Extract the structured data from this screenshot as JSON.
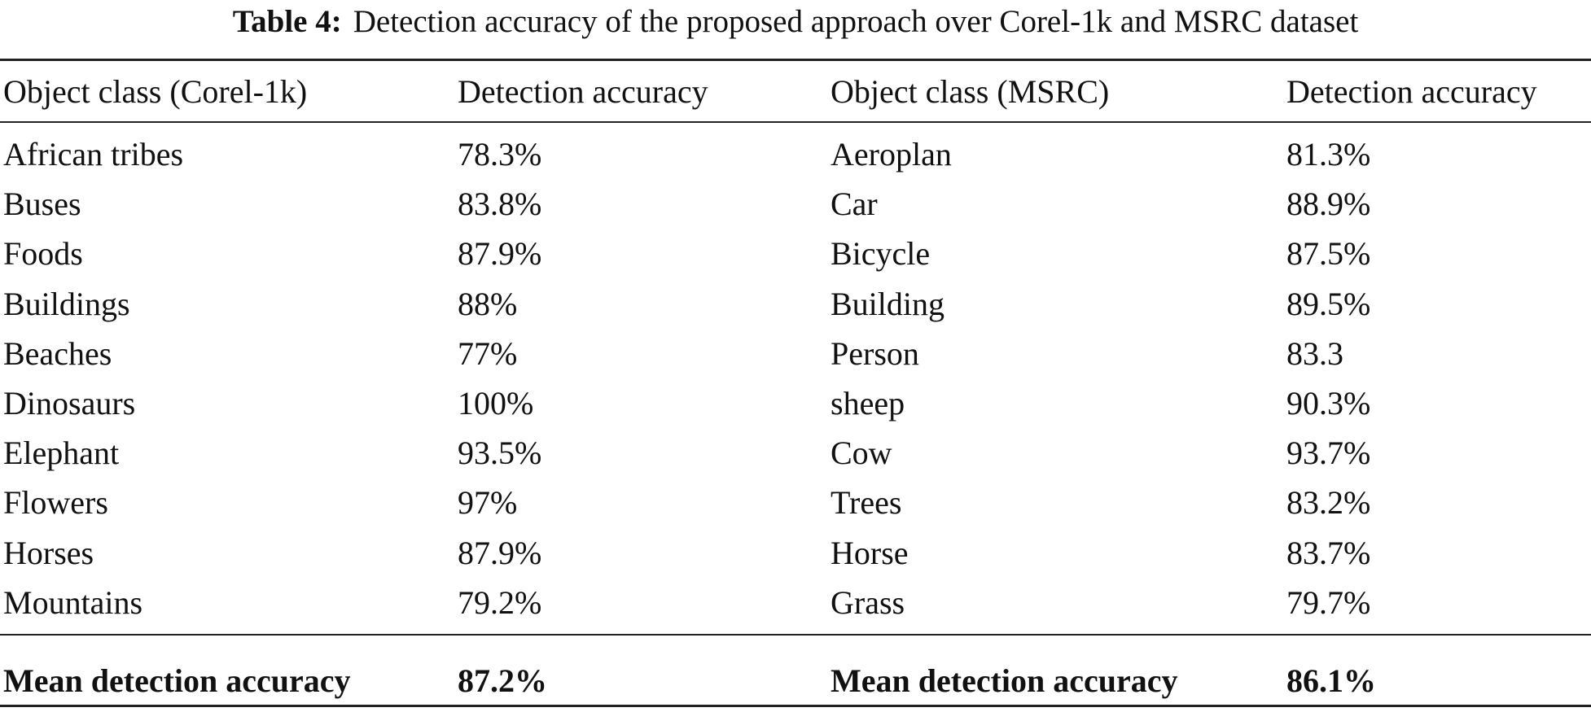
{
  "caption": {
    "label": "Table 4:",
    "text": "Detection accuracy of the proposed approach over Corel-1k and MSRC dataset"
  },
  "table": {
    "headers": [
      "Object class (Corel-1k)",
      "Detection accuracy",
      "Object class (MSRC)",
      "Detection accuracy"
    ],
    "rows": [
      [
        "African tribes",
        "78.3%",
        "Aeroplan",
        "81.3%"
      ],
      [
        "Buses",
        "83.8%",
        "Car",
        "88.9%"
      ],
      [
        "Foods",
        "87.9%",
        "Bicycle",
        "87.5%"
      ],
      [
        "Buildings",
        "88%",
        "Building",
        "89.5%"
      ],
      [
        "Beaches",
        "77%",
        "Person",
        "83.3"
      ],
      [
        "Dinosaurs",
        "100%",
        "sheep",
        "90.3%"
      ],
      [
        "Elephant",
        "93.5%",
        "Cow",
        "93.7%"
      ],
      [
        "Flowers",
        "97%",
        "Trees",
        "83.2%"
      ],
      [
        "Horses",
        "87.9%",
        "Horse",
        "83.7%"
      ],
      [
        "Mountains",
        "79.2%",
        "Grass",
        "79.7%"
      ]
    ],
    "summary": [
      "Mean detection accuracy",
      "87.2%",
      "Mean detection accuracy",
      "86.1%"
    ]
  }
}
